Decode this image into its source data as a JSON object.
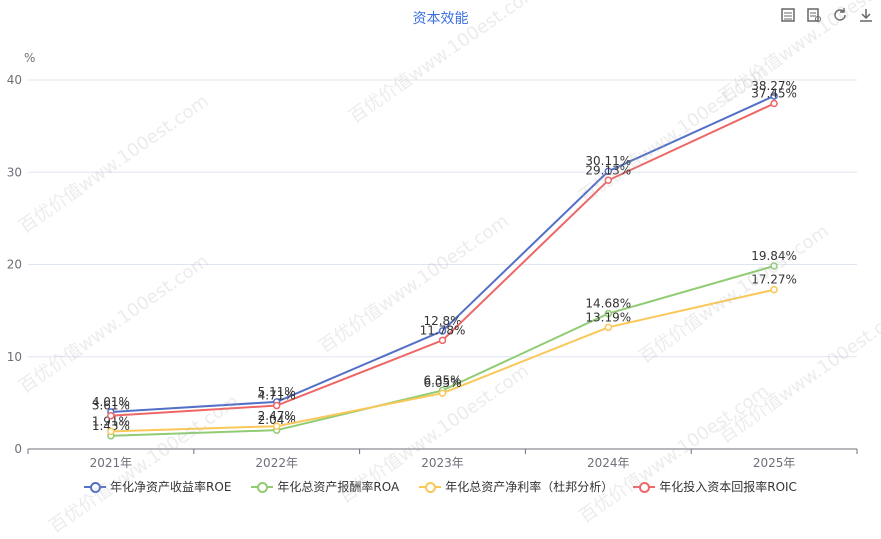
{
  "chart_data": {
    "type": "line",
    "title": "资本效能",
    "ylabel": "%",
    "ylim": [
      0,
      40
    ],
    "yticks": [
      0,
      10,
      20,
      30,
      40
    ],
    "categories": [
      "2021年",
      "2022年",
      "2023年",
      "2024年",
      "2025年"
    ],
    "series": [
      {
        "name": "年化净资产收益率ROE",
        "color": "#5470c6",
        "values": [
          4.01,
          5.11,
          12.8,
          30.11,
          38.27
        ],
        "labels": [
          "4.01%",
          "5.11%",
          "12.8%",
          "30.11%",
          "38.27%"
        ]
      },
      {
        "name": "年化总资产报酬率ROA",
        "color": "#91cc75",
        "values": [
          1.43,
          2.04,
          6.35,
          14.68,
          19.84
        ],
        "labels": [
          "1.43%",
          "2.04%",
          "6.35%",
          "14.68%",
          "19.84%"
        ]
      },
      {
        "name": "年化总资产净利率（杜邦分析）",
        "color": "#fac858",
        "values": [
          1.91,
          2.47,
          6.05,
          13.19,
          17.27
        ],
        "labels": [
          "1.91%",
          "2.47%",
          "6.05%",
          "13.19%",
          "17.27%"
        ]
      },
      {
        "name": "年化投入资本回报率ROIC",
        "color": "#ee6666",
        "values": [
          3.61,
          4.71,
          11.78,
          29.13,
          37.45
        ],
        "labels": [
          "3.61%",
          "4.71%",
          "11.78%",
          "29.13%",
          "37.45%"
        ]
      }
    ],
    "grid": true,
    "legend_position": "bottom"
  },
  "toolbox": {
    "icons": [
      "data-view-icon",
      "restore-icon",
      "refresh-icon",
      "download-icon"
    ]
  },
  "watermark": "百优价值www.100est.com"
}
